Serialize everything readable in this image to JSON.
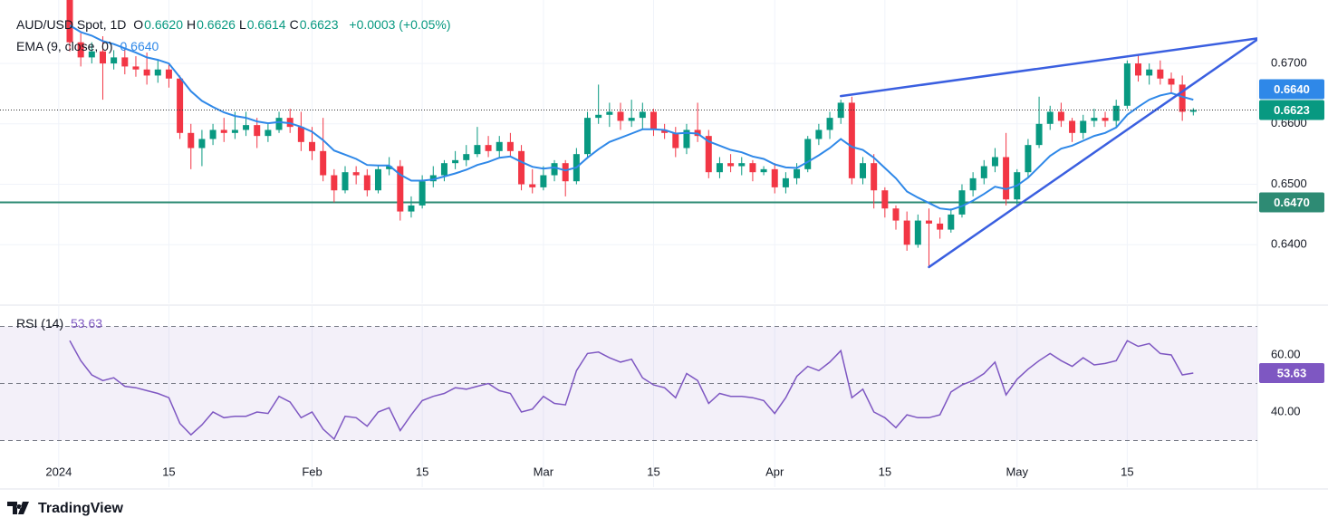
{
  "chart_data": [
    {
      "type": "candlestick",
      "title": "AUD/USD Spot, 1D",
      "header": [
        {
          "key": "O",
          "value": "0.6620"
        },
        {
          "key": "H",
          "value": "0.6626"
        },
        {
          "key": "L",
          "value": "0.6614"
        },
        {
          "key": "C",
          "value": "0.6623"
        }
      ],
      "change": "+0.0003 (+0.05%)",
      "up_color": "#089981",
      "down_color": "#f23645",
      "x": [
        "2024-01-02",
        "2024-01-03",
        "2024-01-04",
        "2024-01-05",
        "2024-01-08",
        "2024-01-09",
        "2024-01-10",
        "2024-01-11",
        "2024-01-12",
        "2024-01-15",
        "2024-01-16",
        "2024-01-17",
        "2024-01-18",
        "2024-01-19",
        "2024-01-22",
        "2024-01-23",
        "2024-01-24",
        "2024-01-25",
        "2024-01-26",
        "2024-01-29",
        "2024-01-30",
        "2024-01-31",
        "2024-02-01",
        "2024-02-02",
        "2024-02-05",
        "2024-02-06",
        "2024-02-07",
        "2024-02-08",
        "2024-02-09",
        "2024-02-12",
        "2024-02-13",
        "2024-02-14",
        "2024-02-15",
        "2024-02-16",
        "2024-02-19",
        "2024-02-20",
        "2024-02-21",
        "2024-02-22",
        "2024-02-23",
        "2024-02-26",
        "2024-02-27",
        "2024-02-28",
        "2024-02-29",
        "2024-03-01",
        "2024-03-04",
        "2024-03-05",
        "2024-03-06",
        "2024-03-07",
        "2024-03-08",
        "2024-03-11",
        "2024-03-12",
        "2024-03-13",
        "2024-03-14",
        "2024-03-15",
        "2024-03-18",
        "2024-03-19",
        "2024-03-20",
        "2024-03-21",
        "2024-03-22",
        "2024-03-25",
        "2024-03-26",
        "2024-03-27",
        "2024-03-28",
        "2024-03-29",
        "2024-04-01",
        "2024-04-02",
        "2024-04-03",
        "2024-04-04",
        "2024-04-05",
        "2024-04-08",
        "2024-04-09",
        "2024-04-10",
        "2024-04-11",
        "2024-04-12",
        "2024-04-15",
        "2024-04-16",
        "2024-04-17",
        "2024-04-18",
        "2024-04-19",
        "2024-04-22",
        "2024-04-23",
        "2024-04-24",
        "2024-04-25",
        "2024-04-26",
        "2024-04-29",
        "2024-04-30",
        "2024-05-01",
        "2024-05-02",
        "2024-05-03",
        "2024-05-06",
        "2024-05-07",
        "2024-05-08",
        "2024-05-09",
        "2024-05-10",
        "2024-05-13",
        "2024-05-14",
        "2024-05-15",
        "2024-05-16",
        "2024-05-17",
        "2024-05-20",
        "2024-05-21",
        "2024-05-22",
        "2024-05-23"
      ],
      "open": [
        0.681,
        0.6735,
        0.671,
        0.672,
        0.67,
        0.671,
        0.6695,
        0.669,
        0.668,
        0.669,
        0.6675,
        0.6585,
        0.656,
        0.6575,
        0.659,
        0.6585,
        0.659,
        0.6598,
        0.658,
        0.659,
        0.661,
        0.6595,
        0.657,
        0.6555,
        0.6515,
        0.649,
        0.652,
        0.6515,
        0.649,
        0.6525,
        0.653,
        0.6455,
        0.6465,
        0.6505,
        0.6515,
        0.6535,
        0.654,
        0.655,
        0.6565,
        0.6555,
        0.657,
        0.6555,
        0.65,
        0.6495,
        0.6515,
        0.6535,
        0.6505,
        0.655,
        0.661,
        0.6615,
        0.662,
        0.6605,
        0.661,
        0.662,
        0.659,
        0.6585,
        0.656,
        0.659,
        0.658,
        0.652,
        0.6535,
        0.653,
        0.6535,
        0.652,
        0.6525,
        0.6495,
        0.651,
        0.6525,
        0.6575,
        0.659,
        0.661,
        0.6635,
        0.651,
        0.6535,
        0.649,
        0.646,
        0.644,
        0.64,
        0.644,
        0.6435,
        0.6425,
        0.645,
        0.649,
        0.651,
        0.653,
        0.6545,
        0.6475,
        0.652,
        0.6565,
        0.66,
        0.662,
        0.6605,
        0.6585,
        0.6605,
        0.661,
        0.6605,
        0.663,
        0.67,
        0.668,
        0.669,
        0.6675,
        0.6665,
        0.662
      ],
      "high": [
        0.683,
        0.675,
        0.6735,
        0.6745,
        0.6722,
        0.6725,
        0.6712,
        0.6718,
        0.6705,
        0.67,
        0.668,
        0.66,
        0.659,
        0.66,
        0.661,
        0.662,
        0.662,
        0.661,
        0.66,
        0.662,
        0.6625,
        0.662,
        0.6595,
        0.661,
        0.6525,
        0.653,
        0.653,
        0.6525,
        0.653,
        0.6545,
        0.654,
        0.648,
        0.6515,
        0.653,
        0.654,
        0.6555,
        0.6565,
        0.6595,
        0.658,
        0.658,
        0.6585,
        0.6565,
        0.6525,
        0.653,
        0.654,
        0.654,
        0.656,
        0.662,
        0.6665,
        0.6635,
        0.6635,
        0.664,
        0.6635,
        0.6625,
        0.66,
        0.6595,
        0.66,
        0.6635,
        0.659,
        0.6545,
        0.655,
        0.6545,
        0.654,
        0.653,
        0.6535,
        0.652,
        0.6535,
        0.658,
        0.66,
        0.662,
        0.664,
        0.6645,
        0.6545,
        0.655,
        0.6495,
        0.6465,
        0.6455,
        0.645,
        0.646,
        0.6445,
        0.646,
        0.65,
        0.652,
        0.654,
        0.656,
        0.6585,
        0.6525,
        0.6575,
        0.6645,
        0.663,
        0.6635,
        0.661,
        0.6615,
        0.6625,
        0.662,
        0.664,
        0.6705,
        0.6715,
        0.67,
        0.6705,
        0.6685,
        0.668,
        0.6626
      ],
      "low": [
        0.672,
        0.6695,
        0.67,
        0.664,
        0.669,
        0.6682,
        0.6678,
        0.6665,
        0.6668,
        0.666,
        0.6575,
        0.6525,
        0.653,
        0.6565,
        0.657,
        0.6575,
        0.658,
        0.656,
        0.657,
        0.6585,
        0.6585,
        0.6555,
        0.654,
        0.6505,
        0.647,
        0.6485,
        0.65,
        0.648,
        0.6485,
        0.6515,
        0.644,
        0.6445,
        0.646,
        0.6495,
        0.6505,
        0.6525,
        0.653,
        0.6545,
        0.6545,
        0.6545,
        0.6545,
        0.649,
        0.6485,
        0.649,
        0.6505,
        0.648,
        0.65,
        0.6545,
        0.66,
        0.6595,
        0.659,
        0.6595,
        0.659,
        0.658,
        0.6575,
        0.6545,
        0.655,
        0.657,
        0.651,
        0.651,
        0.652,
        0.6515,
        0.6505,
        0.6515,
        0.6485,
        0.6485,
        0.65,
        0.652,
        0.6565,
        0.6575,
        0.66,
        0.65,
        0.65,
        0.646,
        0.6445,
        0.6425,
        0.639,
        0.6395,
        0.6362,
        0.641,
        0.642,
        0.6445,
        0.648,
        0.65,
        0.652,
        0.6465,
        0.6465,
        0.651,
        0.656,
        0.659,
        0.6595,
        0.657,
        0.6575,
        0.6595,
        0.6595,
        0.6595,
        0.6625,
        0.667,
        0.6665,
        0.6665,
        0.665,
        0.6605,
        0.6614
      ],
      "close": [
        0.6735,
        0.671,
        0.672,
        0.67,
        0.671,
        0.6695,
        0.669,
        0.668,
        0.669,
        0.6675,
        0.6585,
        0.656,
        0.6575,
        0.659,
        0.6585,
        0.659,
        0.6598,
        0.658,
        0.659,
        0.661,
        0.6595,
        0.657,
        0.6555,
        0.6515,
        0.649,
        0.652,
        0.6515,
        0.649,
        0.6525,
        0.653,
        0.6455,
        0.6465,
        0.6505,
        0.6515,
        0.6535,
        0.654,
        0.655,
        0.6565,
        0.6555,
        0.657,
        0.6555,
        0.65,
        0.6495,
        0.6515,
        0.6535,
        0.6505,
        0.655,
        0.661,
        0.6615,
        0.662,
        0.6605,
        0.661,
        0.662,
        0.659,
        0.6585,
        0.656,
        0.659,
        0.658,
        0.652,
        0.6535,
        0.653,
        0.6535,
        0.652,
        0.6525,
        0.6495,
        0.651,
        0.6525,
        0.6575,
        0.659,
        0.661,
        0.6635,
        0.651,
        0.6535,
        0.649,
        0.646,
        0.644,
        0.64,
        0.644,
        0.6435,
        0.6425,
        0.645,
        0.649,
        0.651,
        0.653,
        0.6545,
        0.6475,
        0.652,
        0.6565,
        0.66,
        0.662,
        0.6605,
        0.6585,
        0.6605,
        0.661,
        0.6605,
        0.663,
        0.67,
        0.668,
        0.669,
        0.6675,
        0.6665,
        0.662,
        0.6623
      ],
      "series": [
        {
          "name": "EMA (9, close, 0)",
          "color": "#2f88e8",
          "value_label": "0.6640",
          "values": [
            0.6763,
            0.6752,
            0.6746,
            0.6737,
            0.6732,
            0.6725,
            0.6718,
            0.671,
            0.6706,
            0.67,
            0.6677,
            0.6654,
            0.6638,
            0.6628,
            0.6619,
            0.6613,
            0.661,
            0.6604,
            0.6601,
            0.6603,
            0.6601,
            0.6595,
            0.6587,
            0.6573,
            0.6556,
            0.6549,
            0.6542,
            0.6532,
            0.6531,
            0.6531,
            0.6516,
            0.6506,
            0.6506,
            0.6508,
            0.6513,
            0.6518,
            0.6524,
            0.6532,
            0.6537,
            0.6544,
            0.6546,
            0.6537,
            0.6529,
            0.6526,
            0.6528,
            0.6523,
            0.6528,
            0.6544,
            0.6558,
            0.657,
            0.6577,
            0.6584,
            0.6591,
            0.6591,
            0.659,
            0.6584,
            0.6585,
            0.6584,
            0.6571,
            0.6564,
            0.6557,
            0.6553,
            0.6546,
            0.6542,
            0.6533,
            0.6528,
            0.6527,
            0.6537,
            0.6548,
            0.656,
            0.6575,
            0.6562,
            0.6557,
            0.6544,
            0.6527,
            0.651,
            0.6488,
            0.6478,
            0.6469,
            0.646,
            0.6458,
            0.6464,
            0.6473,
            0.6484,
            0.6496,
            0.6492,
            0.6498,
            0.6511,
            0.6529,
            0.6547,
            0.6559,
            0.6564,
            0.6572,
            0.658,
            0.6585,
            0.6594,
            0.6615,
            0.6628,
            0.664,
            0.6647,
            0.6651,
            0.6645,
            0.664
          ]
        }
      ],
      "levels": [
        {
          "value": 0.647,
          "label": "0.6470",
          "color": "#2e8b74"
        }
      ],
      "trendlines": [
        {
          "x": [
            "2024-04-09",
            "2024-05-31"
          ],
          "y": [
            0.6646,
            0.6742
          ]
        },
        {
          "x": [
            "2024-04-19",
            "2024-05-31"
          ],
          "y": [
            0.6363,
            0.6742
          ]
        }
      ],
      "trendline_color": "#3a5fe0",
      "ylim": [
        0.6303,
        0.6805
      ],
      "yticks": [
        {
          "value": 0.64,
          "label": "0.6400"
        },
        {
          "value": 0.65,
          "label": "0.6500"
        },
        {
          "value": 0.66,
          "label": "0.6600"
        },
        {
          "value": 0.67,
          "label": "0.6700"
        }
      ],
      "xticks": [
        {
          "value": "2024-01-01",
          "label": "2024"
        },
        {
          "value": "2024-01-15",
          "label": "15"
        },
        {
          "value": "2024-02-01",
          "label": "Feb"
        },
        {
          "value": "2024-02-15",
          "label": "15"
        },
        {
          "value": "2024-03-01",
          "label": "Mar"
        },
        {
          "value": "2024-03-15",
          "label": "15"
        },
        {
          "value": "2024-04-01",
          "label": "Apr"
        },
        {
          "value": "2024-04-15",
          "label": "15"
        },
        {
          "value": "2024-05-01",
          "label": "May"
        },
        {
          "value": "2024-05-15",
          "label": "15"
        }
      ],
      "grid": true
    },
    {
      "type": "line",
      "series": [
        {
          "name": "RSI (14)",
          "color": "#7e57c2",
          "values": [
            65,
            58,
            53,
            51,
            52,
            49,
            48.5,
            47.5,
            46.5,
            45,
            36,
            32,
            35.5,
            40,
            38,
            38.5,
            38.5,
            40,
            39.5,
            45.5,
            43.5,
            38,
            40,
            34,
            30.5,
            38.5,
            38,
            35,
            40,
            41.5,
            33.5,
            39,
            44,
            45.5,
            46.5,
            48.5,
            48,
            49,
            50,
            47.5,
            46.5,
            40,
            41,
            45.5,
            43,
            42.5,
            54.5,
            60.5,
            61,
            59,
            57.5,
            58.5,
            52,
            49.5,
            48.5,
            45,
            53.5,
            51,
            43,
            46.5,
            45.5,
            45.5,
            45,
            44,
            39.5,
            45,
            52.5,
            56,
            54.5,
            57.5,
            61.5,
            45,
            48,
            40,
            38,
            34.5,
            39,
            38,
            38,
            39,
            47,
            49.5,
            51,
            53.5,
            57.5,
            46,
            51.5,
            55,
            58,
            60.5,
            58,
            56,
            59,
            56.5,
            57,
            58,
            65,
            63,
            64,
            60.5,
            60,
            53,
            53.63
          ]
        }
      ],
      "band": [
        30,
        70
      ],
      "midline": 50,
      "ylim": [
        14.6,
        76.5
      ],
      "yticks": [
        {
          "value": 40,
          "label": "40.00"
        },
        {
          "value": 60,
          "label": "60.00"
        }
      ]
    }
  ],
  "footer": "TradingView"
}
